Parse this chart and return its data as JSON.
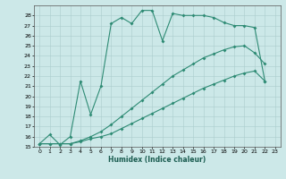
{
  "xlabel": "Humidex (Indice chaleur)",
  "xlim": [
    -0.5,
    23.5
  ],
  "ylim": [
    15,
    29
  ],
  "yticks": [
    15,
    16,
    17,
    18,
    19,
    20,
    21,
    22,
    23,
    24,
    25,
    26,
    27,
    28
  ],
  "xticks": [
    0,
    1,
    2,
    3,
    4,
    5,
    6,
    7,
    8,
    9,
    10,
    11,
    12,
    13,
    14,
    15,
    16,
    17,
    18,
    19,
    20,
    21,
    22,
    23
  ],
  "color": "#2e8b74",
  "bg_color": "#cce8e8",
  "line1_x": [
    0,
    1,
    2,
    3,
    4,
    5,
    6,
    7,
    8,
    9,
    10,
    11,
    12,
    13,
    14,
    15,
    16,
    17,
    18,
    19,
    20,
    21,
    22
  ],
  "line1_y": [
    15.3,
    16.2,
    15.2,
    16.0,
    21.5,
    18.2,
    21.0,
    27.2,
    27.8,
    27.2,
    28.5,
    28.5,
    25.5,
    28.2,
    28.0,
    28.0,
    28.0,
    27.8,
    27.3,
    27.0,
    27.0,
    26.8,
    21.5
  ],
  "line2_x": [
    0,
    1,
    2,
    3,
    4,
    5,
    6,
    7,
    8,
    9,
    10,
    11,
    12,
    13,
    14,
    15,
    16,
    17,
    18,
    19,
    20,
    21,
    22
  ],
  "line2_y": [
    15.3,
    15.3,
    15.3,
    15.3,
    15.5,
    15.8,
    16.0,
    16.3,
    16.8,
    17.3,
    17.8,
    18.3,
    18.8,
    19.3,
    19.8,
    20.3,
    20.8,
    21.2,
    21.6,
    22.0,
    22.3,
    22.5,
    21.5
  ],
  "line3_x": [
    0,
    1,
    2,
    3,
    4,
    5,
    6,
    7,
    8,
    9,
    10,
    11,
    12,
    13,
    14,
    15,
    16,
    17,
    18,
    19,
    20,
    21,
    22
  ],
  "line3_y": [
    15.3,
    15.3,
    15.3,
    15.3,
    15.6,
    16.0,
    16.5,
    17.2,
    18.0,
    18.8,
    19.6,
    20.4,
    21.2,
    22.0,
    22.6,
    23.2,
    23.8,
    24.2,
    24.6,
    24.9,
    25.0,
    24.3,
    23.2
  ]
}
